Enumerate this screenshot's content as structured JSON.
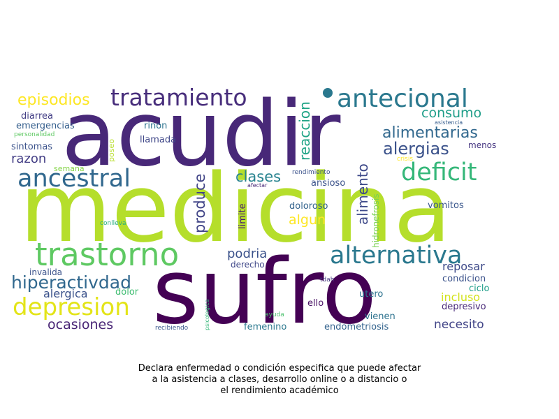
{
  "chart_data": {
    "type": "wordcloud",
    "caption_lines": [
      "Declara enfermedad o condición especifica que puede afectar",
      "a la asistencia a clases, desarrollo online o a distancio o",
      "el rendimiento académico"
    ],
    "words": [
      {
        "text": "medicina",
        "color": "#b5de2b"
      },
      {
        "text": "acudir",
        "color": "#482878"
      },
      {
        "text": "sufro",
        "color": "#440154"
      },
      {
        "text": "tratamiento",
        "color": "#472d7b"
      },
      {
        "text": "antecional",
        "color": "#2a788e"
      },
      {
        "text": "trastorno",
        "color": "#5ec962"
      },
      {
        "text": "ancestral",
        "color": "#31688e"
      },
      {
        "text": "deficit",
        "color": "#35b779"
      },
      {
        "text": "alternativa",
        "color": "#2a788e"
      },
      {
        "text": "depresion",
        "color": "#e3e418"
      },
      {
        "text": "episodios",
        "color": "#fde725"
      },
      {
        "text": "hiperactivdad",
        "color": "#31688e"
      },
      {
        "text": "alimentarias",
        "color": "#30678d"
      },
      {
        "text": "alergias",
        "color": "#3b528b"
      },
      {
        "text": "consumo",
        "color": "#1f9e89"
      },
      {
        "text": "reaccion",
        "color": "#20a486"
      },
      {
        "text": "alimento",
        "color": "#3e4989"
      },
      {
        "text": "produce",
        "color": "#414487"
      },
      {
        "text": "clases",
        "color": "#26828e"
      },
      {
        "text": "podria",
        "color": "#3b528b"
      },
      {
        "text": "algun",
        "color": "#fde725"
      },
      {
        "text": "ocasiones",
        "color": "#482475"
      },
      {
        "text": "razon",
        "color": "#433e85"
      },
      {
        "text": "necesito",
        "color": "#414487"
      },
      {
        "text": "alergica",
        "color": "#3b528b"
      },
      {
        "text": "incluso",
        "color": "#d2e21b"
      },
      {
        "text": "reposar",
        "color": "#3e4a89"
      },
      {
        "text": "sintomas",
        "color": "#3b528b"
      },
      {
        "text": "diarrea",
        "color": "#433e85"
      },
      {
        "text": "emergencias",
        "color": "#355f8d"
      },
      {
        "text": "llamada",
        "color": "#3f4788"
      },
      {
        "text": "rinon",
        "color": "#2c728e"
      },
      {
        "text": "semana",
        "color": "#86d549"
      },
      {
        "text": "poseo",
        "color": "#b8de29"
      },
      {
        "text": "menos",
        "color": "#453581"
      },
      {
        "text": "crisis",
        "color": "#fde725"
      },
      {
        "text": "asistencia",
        "color": "#365d8d"
      },
      {
        "text": "rendimiento",
        "color": "#3b528b"
      },
      {
        "text": "afectar",
        "color": "#482878"
      },
      {
        "text": "ansioso",
        "color": "#3b528b"
      },
      {
        "text": "limite",
        "color": "#481d6f"
      },
      {
        "text": "hidronefrosis",
        "color": "#7ad151"
      },
      {
        "text": "doloroso",
        "color": "#33638d"
      },
      {
        "text": "vomitos",
        "color": "#39568c"
      },
      {
        "text": "personalidad",
        "color": "#5ec962"
      },
      {
        "text": "conlleva",
        "color": "#29af7f"
      },
      {
        "text": "invalida",
        "color": "#3b528b"
      },
      {
        "text": "derecho",
        "color": "#3f4788"
      },
      {
        "text": "condicion",
        "color": "#3b528b"
      },
      {
        "text": "ciclo",
        "color": "#1f9e89"
      },
      {
        "text": "depresivo",
        "color": "#482878"
      },
      {
        "text": "dolor",
        "color": "#40bd72"
      },
      {
        "text": "tdah",
        "color": "#453781"
      },
      {
        "text": "ello",
        "color": "#471063"
      },
      {
        "text": "utero",
        "color": "#2c728e"
      },
      {
        "text": "psicologica",
        "color": "#35b779"
      },
      {
        "text": "ayuda",
        "color": "#4ac16d"
      },
      {
        "text": "recibiendo",
        "color": "#39568c"
      },
      {
        "text": "femenino",
        "color": "#2a788e"
      },
      {
        "text": "vienen",
        "color": "#2c728e"
      },
      {
        "text": "endometriosis",
        "color": "#33638d"
      }
    ]
  }
}
